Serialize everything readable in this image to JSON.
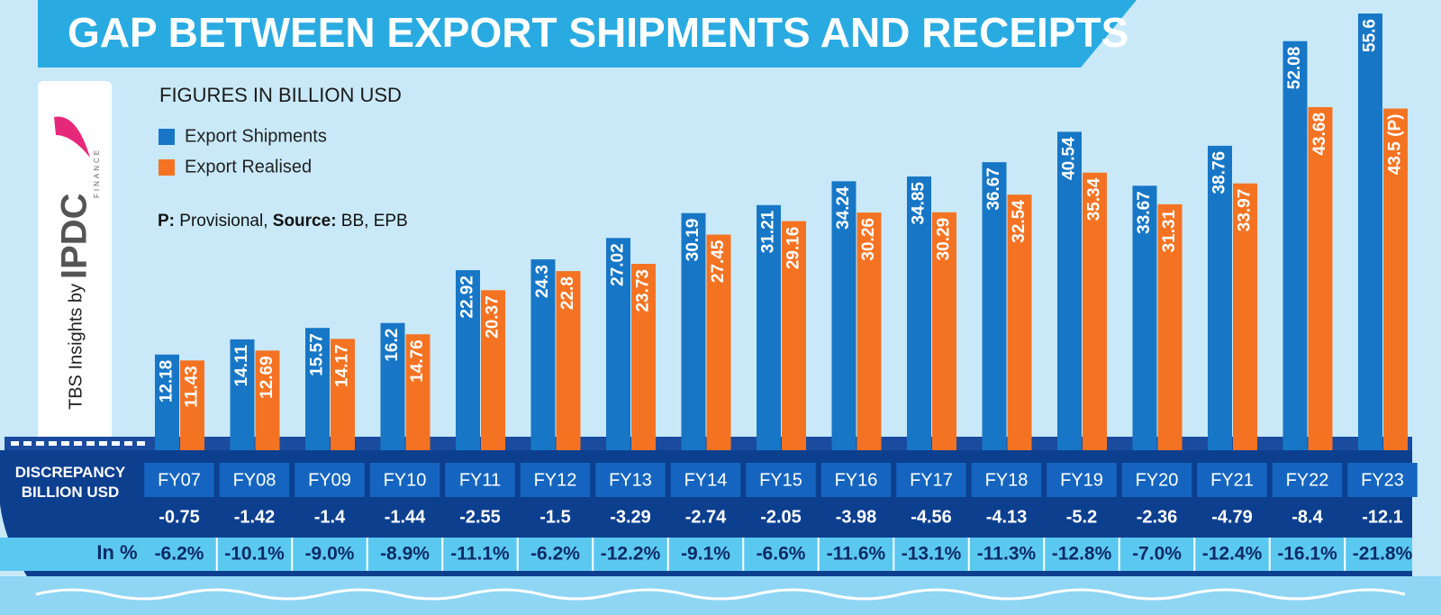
{
  "chart_data": {
    "type": "bar",
    "title": "GAP BETWEEN EXPORT SHIPMENTS AND RECEIPTS",
    "subtitle": "FIGURES IN BILLION USD",
    "note": [
      "P:",
      " Provisional, ",
      "Source:",
      " BB, EPB"
    ],
    "categories": [
      "FY07",
      "FY08",
      "FY09",
      "FY10",
      "FY11",
      "FY12",
      "FY13",
      "FY14",
      "FY15",
      "FY16",
      "FY17",
      "FY18",
      "FY19",
      "FY20",
      "FY21",
      "FY22",
      "FY23"
    ],
    "series": [
      {
        "name": "Export Shipments",
        "color": "#1777c6",
        "values": [
          12.18,
          14.11,
          15.57,
          16.2,
          22.92,
          24.3,
          27.02,
          30.19,
          31.21,
          34.24,
          34.85,
          36.67,
          40.54,
          33.67,
          38.76,
          52.08,
          55.6
        ]
      },
      {
        "name": "Export Realised",
        "color": "#f47322",
        "values": [
          11.43,
          12.69,
          14.17,
          14.76,
          20.37,
          22.8,
          23.73,
          27.45,
          29.16,
          30.26,
          30.29,
          32.54,
          35.34,
          31.31,
          33.97,
          43.68,
          43.5
        ],
        "value_labels": [
          "11.43",
          "12.69",
          "14.17",
          "14.76",
          "20.37",
          "22.8",
          "23.73",
          "27.45",
          "29.16",
          "30.26",
          "30.29",
          "32.54",
          "35.34",
          "31.31",
          "33.97",
          "43.68",
          "43.5 (P)"
        ]
      }
    ],
    "discrepancy": {
      "label": "DISCREPANCY BILLION USD",
      "values": [
        -0.75,
        -1.42,
        -1.4,
        -1.44,
        -2.55,
        -1.5,
        -3.29,
        -2.74,
        -2.05,
        -3.98,
        -4.56,
        -4.13,
        -5.2,
        -2.36,
        -4.79,
        -8.4,
        -12.1
      ]
    },
    "percent": {
      "label": "In %",
      "values": [
        -6.2,
        -10.1,
        -9.0,
        -8.9,
        -11.1,
        -6.2,
        -12.2,
        -9.1,
        -6.6,
        -11.6,
        -13.1,
        -11.3,
        -12.8,
        -7.0,
        -12.4,
        -16.1,
        -21.8
      ],
      "value_labels": [
        "-6.2%",
        "-10.1%",
        "-9.0%",
        "-8.9%",
        "-11.1%",
        "-6.2%",
        "-12.2%",
        "-9.1%",
        "-6.6%",
        "-11.6%",
        "-13.1%",
        "-11.3%",
        "-12.8%",
        "-7.0%",
        "-12.4%",
        "-16.1%",
        "-21.8%"
      ]
    },
    "branding": {
      "credit": "TBS Insights by",
      "logo": "IPDC",
      "logo_sub": "FINANCE"
    }
  }
}
